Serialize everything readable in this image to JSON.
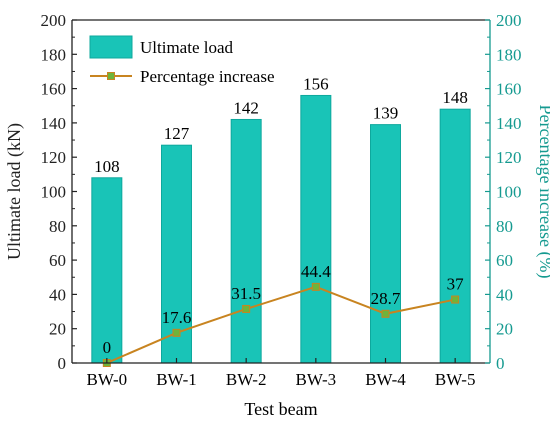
{
  "chart_data": {
    "type": "bar",
    "xlabel": "Test beam",
    "ylabel": "Ultimate load (kN)",
    "y2label": "Percentage increase (%)",
    "categories": [
      "BW-0",
      "BW-1",
      "BW-2",
      "BW-3",
      "BW-4",
      "BW-5"
    ],
    "series": [
      {
        "name": "Ultimate load",
        "type": "bar",
        "axis": "left",
        "values": [
          108,
          127,
          142,
          156,
          139,
          148
        ]
      },
      {
        "name": "Percentage increase",
        "type": "line",
        "axis": "right",
        "values": [
          0,
          17.6,
          31.5,
          44.4,
          28.7,
          37
        ]
      }
    ],
    "bar_labels": [
      "108",
      "127",
      "142",
      "156",
      "139",
      "148"
    ],
    "line_labels": [
      "0",
      "17.6",
      "31.5",
      "44.4",
      "28.7",
      "37"
    ],
    "ylim": [
      0,
      200
    ],
    "y2lim": [
      0,
      200
    ],
    "yticks": [
      0,
      20,
      40,
      60,
      80,
      100,
      120,
      140,
      160,
      180,
      200
    ],
    "y2ticks": [
      0,
      20,
      40,
      60,
      80,
      100,
      120,
      140,
      160,
      180,
      200
    ],
    "grid": false,
    "legend_position": "top-left",
    "colors": {
      "bar": "#19c4b7",
      "bar_edge": "#0ea89d",
      "line": "#c88420",
      "marker": "#6fb43a",
      "left_axis": "#222222",
      "right_axis": "#159a90"
    }
  }
}
